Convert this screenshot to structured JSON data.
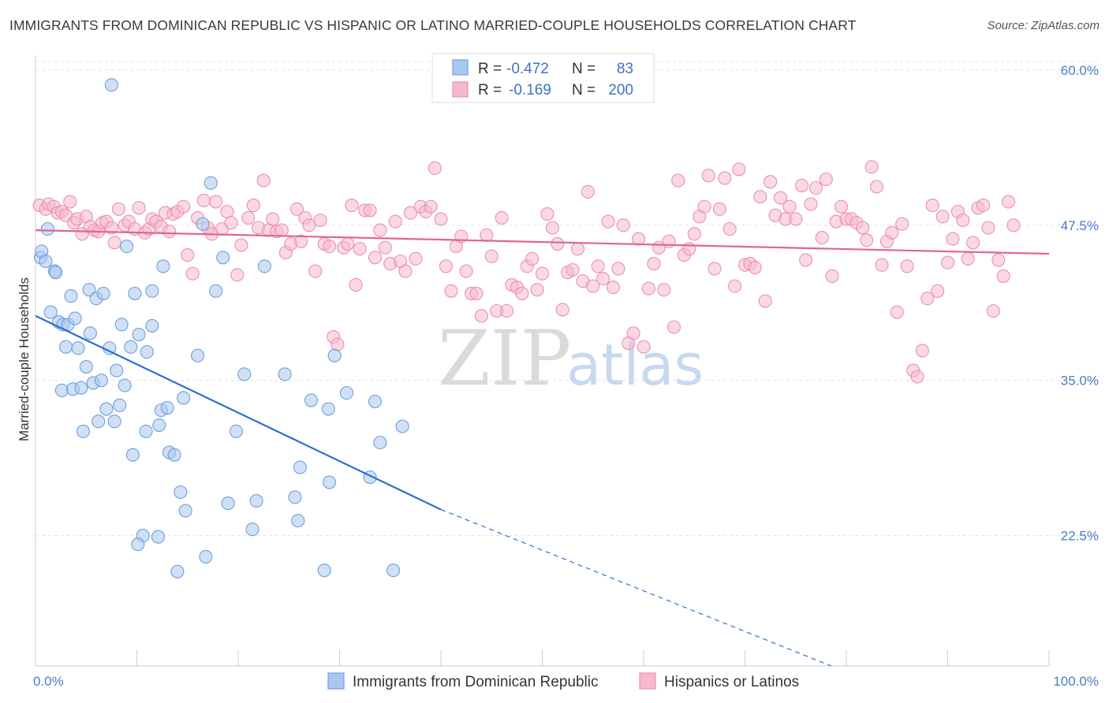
{
  "title": "IMMIGRANTS FROM DOMINICAN REPUBLIC VS HISPANIC OR LATINO MARRIED-COUPLE HOUSEHOLDS CORRELATION CHART",
  "source": "Source: ZipAtlas.com",
  "watermark": {
    "zip": "ZIP",
    "atlas": "atlas"
  },
  "chart_data": {
    "type": "scatter",
    "title": "IMMIGRANTS FROM DOMINICAN REPUBLIC VS HISPANIC OR LATINO MARRIED-COUPLE HOUSEHOLDS CORRELATION CHART",
    "xlabel": "",
    "ylabel": "Married-couple Households",
    "xlim": [
      0,
      100
    ],
    "ylim": [
      12,
      61.2
    ],
    "x_tick_labels": [
      "0.0%",
      "100.0%"
    ],
    "y_ticks": [
      22.5,
      35.0,
      47.5,
      60.0
    ],
    "y_tick_labels": [
      "22.5%",
      "35.0%",
      "47.5%",
      "60.0%"
    ],
    "grid": true,
    "legend_position": "top-center",
    "colors": {
      "blue_fill": "#a9c8ef",
      "blue_stroke": "#6f9fdc",
      "blue_line": "#2d6fd0",
      "pink_fill": "#f6b9cc",
      "pink_stroke": "#ec8fae",
      "pink_line": "#e06690"
    },
    "stats": [
      {
        "r_label": "R =",
        "r_value": "-0.472",
        "n_label": "N =",
        "n_value": "83"
      },
      {
        "r_label": "R =",
        "r_value": "-0.169",
        "n_label": "N =",
        "n_value": "200"
      }
    ],
    "series": [
      {
        "name": "Immigrants from Dominican Republic",
        "color": "#a9c8ef",
        "trend": {
          "x0": 0,
          "y0": 40.2,
          "x1": 40,
          "y1": 24.6,
          "dash_to_x": 78.5,
          "dash_to_y": 12.0
        },
        "points": [
          [
            0.5,
            44.9
          ],
          [
            0.6,
            45.4
          ],
          [
            1.0,
            44.6
          ],
          [
            1.2,
            47.2
          ],
          [
            1.5,
            40.5
          ],
          [
            1.9,
            43.8
          ],
          [
            2.0,
            43.7
          ],
          [
            2.3,
            39.7
          ],
          [
            2.6,
            34.2
          ],
          [
            2.7,
            39.5
          ],
          [
            3.0,
            37.7
          ],
          [
            3.2,
            39.5
          ],
          [
            3.5,
            41.8
          ],
          [
            3.7,
            34.3
          ],
          [
            3.9,
            40.0
          ],
          [
            4.2,
            37.6
          ],
          [
            4.5,
            34.4
          ],
          [
            4.7,
            30.9
          ],
          [
            5.0,
            36.1
          ],
          [
            5.3,
            42.3
          ],
          [
            5.4,
            38.8
          ],
          [
            5.7,
            34.8
          ],
          [
            6.0,
            41.6
          ],
          [
            6.2,
            31.7
          ],
          [
            6.5,
            35.0
          ],
          [
            6.7,
            42.0
          ],
          [
            7.0,
            32.7
          ],
          [
            7.3,
            37.6
          ],
          [
            7.5,
            58.8
          ],
          [
            7.8,
            31.7
          ],
          [
            8.0,
            35.8
          ],
          [
            8.3,
            33.0
          ],
          [
            8.5,
            39.5
          ],
          [
            8.8,
            34.6
          ],
          [
            9.0,
            45.8
          ],
          [
            9.4,
            37.7
          ],
          [
            9.6,
            29.0
          ],
          [
            9.8,
            42.0
          ],
          [
            10.2,
            38.7
          ],
          [
            10.6,
            22.5
          ],
          [
            10.1,
            21.8
          ],
          [
            10.9,
            30.9
          ],
          [
            11.0,
            37.3
          ],
          [
            11.5,
            42.2
          ],
          [
            11.5,
            39.4
          ],
          [
            12.1,
            22.4
          ],
          [
            12.2,
            31.4
          ],
          [
            12.4,
            32.6
          ],
          [
            12.6,
            44.2
          ],
          [
            13.0,
            32.8
          ],
          [
            13.2,
            29.2
          ],
          [
            13.7,
            29.0
          ],
          [
            14.0,
            19.6
          ],
          [
            14.3,
            26.0
          ],
          [
            14.6,
            33.6
          ],
          [
            14.8,
            24.5
          ],
          [
            16.0,
            37.0
          ],
          [
            16.5,
            47.6
          ],
          [
            16.8,
            20.8
          ],
          [
            17.3,
            50.9
          ],
          [
            17.8,
            42.2
          ],
          [
            18.5,
            44.9
          ],
          [
            19.0,
            25.1
          ],
          [
            19.8,
            30.9
          ],
          [
            20.6,
            35.5
          ],
          [
            21.4,
            23.0
          ],
          [
            21.8,
            25.3
          ],
          [
            22.6,
            44.2
          ],
          [
            24.6,
            35.5
          ],
          [
            25.6,
            25.6
          ],
          [
            25.9,
            23.7
          ],
          [
            26.1,
            28.0
          ],
          [
            27.2,
            33.4
          ],
          [
            28.5,
            19.7
          ],
          [
            28.9,
            32.7
          ],
          [
            29.0,
            26.8
          ],
          [
            29.5,
            37.0
          ],
          [
            30.7,
            34.0
          ],
          [
            33.0,
            27.2
          ],
          [
            33.5,
            33.3
          ],
          [
            34.0,
            30.0
          ],
          [
            35.3,
            19.7
          ],
          [
            36.2,
            31.3
          ]
        ]
      },
      {
        "name": "Hispanics or Latinos",
        "color": "#f6b9cc",
        "trend": {
          "x0": 0,
          "y0": 47.1,
          "x1": 100,
          "y1": 45.2
        },
        "points": [
          [
            0.4,
            49.1
          ],
          [
            1.0,
            48.8
          ],
          [
            1.3,
            49.2
          ],
          [
            1.8,
            49.0
          ],
          [
            2.2,
            48.5
          ],
          [
            2.6,
            48.6
          ],
          [
            3.0,
            48.3
          ],
          [
            3.4,
            49.4
          ],
          [
            3.8,
            47.7
          ],
          [
            4.1,
            48.0
          ],
          [
            4.6,
            46.8
          ],
          [
            5.0,
            48.2
          ],
          [
            5.4,
            47.4
          ],
          [
            5.8,
            47.1
          ],
          [
            6.2,
            47.0
          ],
          [
            6.6,
            47.7
          ],
          [
            7.0,
            47.8
          ],
          [
            7.5,
            47.3
          ],
          [
            7.8,
            46.1
          ],
          [
            8.2,
            48.8
          ],
          [
            8.8,
            47.5
          ],
          [
            9.2,
            47.8
          ],
          [
            9.8,
            47.2
          ],
          [
            10.2,
            48.9
          ],
          [
            10.8,
            46.9
          ],
          [
            11.2,
            47.2
          ],
          [
            11.5,
            48.0
          ],
          [
            11.9,
            47.8
          ],
          [
            12.4,
            47.4
          ],
          [
            12.8,
            48.5
          ],
          [
            13.2,
            47.0
          ],
          [
            13.6,
            48.4
          ],
          [
            14.0,
            48.6
          ],
          [
            14.6,
            49.0
          ],
          [
            15.0,
            45.1
          ],
          [
            15.5,
            43.6
          ],
          [
            16.0,
            48.1
          ],
          [
            16.6,
            49.5
          ],
          [
            17.0,
            47.3
          ],
          [
            17.4,
            46.8
          ],
          [
            17.8,
            49.4
          ],
          [
            18.4,
            47.2
          ],
          [
            18.9,
            48.6
          ],
          [
            19.3,
            47.7
          ],
          [
            19.9,
            43.5
          ],
          [
            20.3,
            45.9
          ],
          [
            21.0,
            48.1
          ],
          [
            21.5,
            49.1
          ],
          [
            22.0,
            47.3
          ],
          [
            22.5,
            51.1
          ],
          [
            23.0,
            47.1
          ],
          [
            23.4,
            48.0
          ],
          [
            23.8,
            47.0
          ],
          [
            24.3,
            47.1
          ],
          [
            24.7,
            45.3
          ],
          [
            25.2,
            46.0
          ],
          [
            25.8,
            48.8
          ],
          [
            26.2,
            46.2
          ],
          [
            26.6,
            48.1
          ],
          [
            27.0,
            47.5
          ],
          [
            27.6,
            43.8
          ],
          [
            28.1,
            47.9
          ],
          [
            28.5,
            46.0
          ],
          [
            29.0,
            45.8
          ],
          [
            29.4,
            38.5
          ],
          [
            29.8,
            37.9
          ],
          [
            30.4,
            45.7
          ],
          [
            30.8,
            46.0
          ],
          [
            31.2,
            49.1
          ],
          [
            31.6,
            42.7
          ],
          [
            32.0,
            45.6
          ],
          [
            32.5,
            48.7
          ],
          [
            33.0,
            48.7
          ],
          [
            33.5,
            44.9
          ],
          [
            34.0,
            47.1
          ],
          [
            34.5,
            45.7
          ],
          [
            35.0,
            44.4
          ],
          [
            35.5,
            47.8
          ],
          [
            36.0,
            44.6
          ],
          [
            36.5,
            43.8
          ],
          [
            37.0,
            48.5
          ],
          [
            37.5,
            44.8
          ],
          [
            38.0,
            49.0
          ],
          [
            38.5,
            48.6
          ],
          [
            39.0,
            49.0
          ],
          [
            39.4,
            52.1
          ],
          [
            40.0,
            48.0
          ],
          [
            40.5,
            44.2
          ],
          [
            41.0,
            42.2
          ],
          [
            41.5,
            45.8
          ],
          [
            42.0,
            46.6
          ],
          [
            42.5,
            43.8
          ],
          [
            43.0,
            42.0
          ],
          [
            43.5,
            42.0
          ],
          [
            44.0,
            40.2
          ],
          [
            44.5,
            46.7
          ],
          [
            45.0,
            45.0
          ],
          [
            45.5,
            40.6
          ],
          [
            46.0,
            48.1
          ],
          [
            46.5,
            40.6
          ],
          [
            47.0,
            42.7
          ],
          [
            47.5,
            42.5
          ],
          [
            48.0,
            42.0
          ],
          [
            48.5,
            44.2
          ],
          [
            49.0,
            44.8
          ],
          [
            49.5,
            42.3
          ],
          [
            50.0,
            43.6
          ],
          [
            50.5,
            48.4
          ],
          [
            51.0,
            47.3
          ],
          [
            51.5,
            46.0
          ],
          [
            52.0,
            40.7
          ],
          [
            52.5,
            43.7
          ],
          [
            53.0,
            43.9
          ],
          [
            53.5,
            45.6
          ],
          [
            54.0,
            43.0
          ],
          [
            54.5,
            50.2
          ],
          [
            55.0,
            42.6
          ],
          [
            55.5,
            44.2
          ],
          [
            56.0,
            43.2
          ],
          [
            56.5,
            47.8
          ],
          [
            57.0,
            42.5
          ],
          [
            57.5,
            44.0
          ],
          [
            58.0,
            47.5
          ],
          [
            58.5,
            38.0
          ],
          [
            59.0,
            38.8
          ],
          [
            59.5,
            46.4
          ],
          [
            60.0,
            37.7
          ],
          [
            60.5,
            42.4
          ],
          [
            61.0,
            44.4
          ],
          [
            61.5,
            45.7
          ],
          [
            62.0,
            42.3
          ],
          [
            62.5,
            46.2
          ],
          [
            63.0,
            39.3
          ],
          [
            63.4,
            51.1
          ],
          [
            64.0,
            45.1
          ],
          [
            64.5,
            45.6
          ],
          [
            65.0,
            46.8
          ],
          [
            65.5,
            48.2
          ],
          [
            66.0,
            49.0
          ],
          [
            66.4,
            51.5
          ],
          [
            67.0,
            44.0
          ],
          [
            67.5,
            48.8
          ],
          [
            68.0,
            51.3
          ],
          [
            68.5,
            47.2
          ],
          [
            69.0,
            42.6
          ],
          [
            69.4,
            52.0
          ],
          [
            70.0,
            44.3
          ],
          [
            70.5,
            44.4
          ],
          [
            71.0,
            44.1
          ],
          [
            71.5,
            49.8
          ],
          [
            72.0,
            41.4
          ],
          [
            72.5,
            51.0
          ],
          [
            73.0,
            48.3
          ],
          [
            73.5,
            49.7
          ],
          [
            74.0,
            48.0
          ],
          [
            74.4,
            49.0
          ],
          [
            75.0,
            48.0
          ],
          [
            75.6,
            50.7
          ],
          [
            76.0,
            44.7
          ],
          [
            76.5,
            49.2
          ],
          [
            77.0,
            50.5
          ],
          [
            77.6,
            46.5
          ],
          [
            78.0,
            51.2
          ],
          [
            78.6,
            43.4
          ],
          [
            79.0,
            47.8
          ],
          [
            79.5,
            49.0
          ],
          [
            80.0,
            48.0
          ],
          [
            80.5,
            48.0
          ],
          [
            81.0,
            47.7
          ],
          [
            81.6,
            47.3
          ],
          [
            82.0,
            46.3
          ],
          [
            82.5,
            52.2
          ],
          [
            83.0,
            50.6
          ],
          [
            83.5,
            44.3
          ],
          [
            84.0,
            46.2
          ],
          [
            84.5,
            46.9
          ],
          [
            85.0,
            40.5
          ],
          [
            85.5,
            47.6
          ],
          [
            86.0,
            44.2
          ],
          [
            86.6,
            35.8
          ],
          [
            87.0,
            35.3
          ],
          [
            87.5,
            37.4
          ],
          [
            88.0,
            41.6
          ],
          [
            88.5,
            49.1
          ],
          [
            89.0,
            42.2
          ],
          [
            89.5,
            48.2
          ],
          [
            90.0,
            44.5
          ],
          [
            90.5,
            46.4
          ],
          [
            91.0,
            48.6
          ],
          [
            91.5,
            47.9
          ],
          [
            92.0,
            44.8
          ],
          [
            92.5,
            46.1
          ],
          [
            93.0,
            48.9
          ],
          [
            93.5,
            49.1
          ],
          [
            94.0,
            47.3
          ],
          [
            94.5,
            40.6
          ],
          [
            95.0,
            44.7
          ],
          [
            95.5,
            43.4
          ],
          [
            96.0,
            49.4
          ],
          [
            96.5,
            47.5
          ]
        ]
      }
    ]
  }
}
